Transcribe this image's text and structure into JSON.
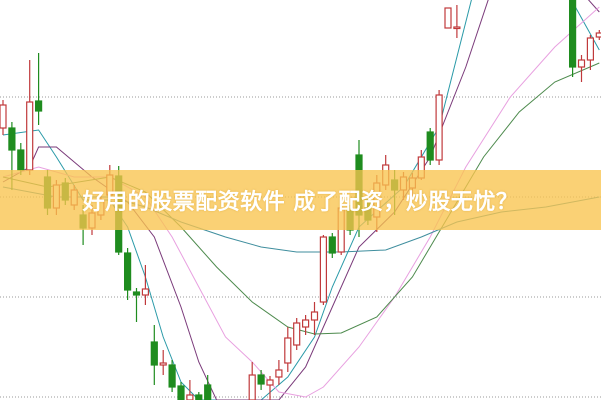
{
  "banner": {
    "text": "好用的股票配资软件 成了配资，炒股无忧？"
  },
  "chart_data": {
    "type": "candlestick",
    "title": "",
    "xlabel": "",
    "ylabel": "",
    "ylim": [
      0,
      3.97
    ],
    "xlim": [
      0,
      67
    ],
    "grid": {
      "horizontal": true,
      "style": "dotted",
      "values": [
        1,
        2,
        3,
        0
      ]
    },
    "colors": {
      "up": "#c0393b",
      "down": "#1f8c1f",
      "grid": "#999999",
      "banner": "#f9c44e"
    },
    "candles": [
      {
        "i": 0,
        "o": 2.69,
        "h": 2.97,
        "l": 2.62,
        "c": 2.92
      },
      {
        "i": 1,
        "o": 2.69,
        "h": 2.75,
        "l": 2.07,
        "c": 2.47
      },
      {
        "i": 2,
        "o": 2.47,
        "h": 2.54,
        "l": 2.22,
        "c": 2.27
      },
      {
        "i": 3,
        "o": 2.27,
        "h": 3.37,
        "l": 2.22,
        "c": 2.95
      },
      {
        "i": 4,
        "o": 2.96,
        "h": 3.44,
        "l": 2.72,
        "c": 2.86
      },
      {
        "i": 5,
        "o": 2.2,
        "h": 2.27,
        "l": 1.82,
        "c": 1.89
      },
      {
        "i": 6,
        "o": 1.89,
        "h": 2.17,
        "l": 1.82,
        "c": 2.12
      },
      {
        "i": 7,
        "o": 2.14,
        "h": 2.19,
        "l": 1.92,
        "c": 1.97
      },
      {
        "i": 8,
        "o": 1.92,
        "h": 2.12,
        "l": 1.87,
        "c": 2.07
      },
      {
        "i": 9,
        "o": 1.82,
        "h": 1.92,
        "l": 1.52,
        "c": 1.69
      },
      {
        "i": 10,
        "o": 1.69,
        "h": 1.92,
        "l": 1.62,
        "c": 1.84
      },
      {
        "i": 11,
        "o": 1.82,
        "h": 2.02,
        "l": 1.77,
        "c": 1.97
      },
      {
        "i": 12,
        "o": 2.02,
        "h": 2.32,
        "l": 1.97,
        "c": 2.22
      },
      {
        "i": 13,
        "o": 2.21,
        "h": 2.31,
        "l": 1.42,
        "c": 1.45
      },
      {
        "i": 14,
        "o": 1.44,
        "h": 1.49,
        "l": 0.97,
        "c": 1.07
      },
      {
        "i": 15,
        "o": 1.05,
        "h": 1.09,
        "l": 0.75,
        "c": 1.02
      },
      {
        "i": 16,
        "o": 1.02,
        "h": 1.32,
        "l": 0.92,
        "c": 1.08
      },
      {
        "i": 17,
        "o": 0.55,
        "h": 0.72,
        "l": 0.12,
        "c": 0.32
      },
      {
        "i": 18,
        "o": 0.32,
        "h": 0.47,
        "l": 0.22,
        "c": 0.34
      },
      {
        "i": 19,
        "o": 0.32,
        "h": 0.37,
        "l": 0.05,
        "c": 0.1
      },
      {
        "i": 20,
        "o": 0.11,
        "h": 0.15,
        "l": -0.03,
        "c": -0.03
      },
      {
        "i": 21,
        "o": -0.03,
        "h": 0.17,
        "l": -0.03,
        "c": 0.02
      },
      {
        "i": 22,
        "o": 0.02,
        "h": 0.05,
        "l": -0.03,
        "c": -0.03
      },
      {
        "i": 23,
        "o": 0.12,
        "h": 0.22,
        "l": -0.03,
        "c": -0.03
      },
      {
        "i": 28,
        "o": -0.03,
        "h": 0.35,
        "l": -0.03,
        "c": 0.22
      },
      {
        "i": 29,
        "o": 0.22,
        "h": 0.27,
        "l": 0.07,
        "c": 0.13
      },
      {
        "i": 30,
        "o": 0.12,
        "h": 0.21,
        "l": -0.03,
        "c": 0.17
      },
      {
        "i": 31,
        "o": 0.2,
        "h": 0.37,
        "l": 0.12,
        "c": 0.27
      },
      {
        "i": 32,
        "o": 0.34,
        "h": 0.7,
        "l": 0.25,
        "c": 0.59
      },
      {
        "i": 33,
        "o": 0.52,
        "h": 0.79,
        "l": 0.47,
        "c": 0.74
      },
      {
        "i": 34,
        "o": 0.7,
        "h": 0.82,
        "l": 0.62,
        "c": 0.77
      },
      {
        "i": 35,
        "o": 0.77,
        "h": 0.95,
        "l": 0.62,
        "c": 0.85
      },
      {
        "i": 36,
        "o": 0.95,
        "h": 1.62,
        "l": 0.92,
        "c": 1.6
      },
      {
        "i": 37,
        "o": 1.6,
        "h": 1.64,
        "l": 1.39,
        "c": 1.44
      },
      {
        "i": 38,
        "o": 1.45,
        "h": 1.97,
        "l": 1.42,
        "c": 1.89
      },
      {
        "i": 39,
        "o": 1.87,
        "h": 1.92,
        "l": 1.62,
        "c": 1.67
      },
      {
        "i": 40,
        "o": 2.42,
        "h": 2.57,
        "l": 1.6,
        "c": 1.82
      },
      {
        "i": 41,
        "o": 1.97,
        "h": 2.02,
        "l": 1.72,
        "c": 1.77
      },
      {
        "i": 42,
        "o": 1.8,
        "h": 2.22,
        "l": 1.65,
        "c": 2.14
      },
      {
        "i": 43,
        "o": 2.12,
        "h": 2.42,
        "l": 2.07,
        "c": 2.32
      },
      {
        "i": 44,
        "o": 2.17,
        "h": 2.27,
        "l": 1.82,
        "c": 2.07
      },
      {
        "i": 45,
        "o": 2.07,
        "h": 2.25,
        "l": 1.97,
        "c": 2.2
      },
      {
        "i": 46,
        "o": 2.09,
        "h": 2.24,
        "l": 2.0,
        "c": 2.19
      },
      {
        "i": 47,
        "o": 2.19,
        "h": 2.47,
        "l": 2.17,
        "c": 2.4
      },
      {
        "i": 48,
        "o": 2.65,
        "h": 2.69,
        "l": 2.32,
        "c": 2.37
      },
      {
        "i": 49,
        "o": 2.37,
        "h": 3.07,
        "l": 2.32,
        "c": 3.02
      },
      {
        "i": 50,
        "o": 3.69,
        "h": 3.89,
        "l": 3.69,
        "c": 3.89
      },
      {
        "i": 51,
        "o": 3.69,
        "h": 3.92,
        "l": 3.59,
        "c": 3.7
      },
      {
        "i": 64,
        "o": 3.97,
        "h": 3.97,
        "l": 3.2,
        "c": 3.3
      },
      {
        "i": 65,
        "o": 3.3,
        "h": 3.42,
        "l": 3.15,
        "c": 3.37
      },
      {
        "i": 66,
        "o": 3.37,
        "h": 3.62,
        "l": 3.27,
        "c": 3.59
      },
      {
        "i": 67,
        "o": 3.6,
        "h": 3.67,
        "l": 3.57,
        "c": 3.64
      }
    ],
    "moving_averages": [
      {
        "color": "#2a9aa8",
        "points": [
          [
            0,
            2.62
          ],
          [
            4,
            2.67
          ],
          [
            6,
            2.4
          ],
          [
            9,
            1.97
          ],
          [
            12,
            1.97
          ],
          [
            14,
            1.7
          ],
          [
            16,
            1.2
          ],
          [
            18,
            0.6
          ],
          [
            20,
            0.15
          ],
          [
            22,
            -0.03
          ],
          [
            29,
            -0.03
          ],
          [
            32,
            0.2
          ],
          [
            35,
            0.6
          ],
          [
            37,
            1.1
          ],
          [
            40,
            1.7
          ],
          [
            45,
            2.1
          ],
          [
            49,
            2.7
          ],
          [
            53,
            4.1
          ]
        ]
      },
      {
        "color": "#2a9aa8",
        "points": [
          [
            63,
            4.1
          ],
          [
            64,
            3.95
          ],
          [
            67,
            3.47
          ]
        ]
      },
      {
        "color": "#7a3a7a",
        "points": [
          [
            0,
            2.15
          ],
          [
            3,
            2.3
          ],
          [
            4,
            2.5
          ],
          [
            6,
            2.5
          ],
          [
            10,
            2.2
          ],
          [
            14,
            1.95
          ],
          [
            17,
            1.6
          ],
          [
            20,
            0.9
          ],
          [
            22,
            0.35
          ],
          [
            24,
            -0.03
          ],
          [
            31,
            -0.03
          ],
          [
            34,
            0.3
          ],
          [
            37,
            0.9
          ],
          [
            40,
            1.5
          ],
          [
            44,
            1.85
          ],
          [
            48,
            2.4
          ],
          [
            52,
            3.3
          ],
          [
            55,
            4.1
          ]
        ]
      },
      {
        "color": "#7a3a7a",
        "points": [
          [
            65,
            4.05
          ],
          [
            67,
            3.85
          ]
        ]
      },
      {
        "color": "#e8a0e0",
        "points": [
          [
            0,
            2.2
          ],
          [
            4,
            2.3
          ],
          [
            8,
            2.2
          ],
          [
            12,
            2.2
          ],
          [
            16,
            2.0
          ],
          [
            19,
            1.6
          ],
          [
            22,
            1.1
          ],
          [
            25,
            0.6
          ],
          [
            28,
            0.35
          ],
          [
            31,
            0.05
          ],
          [
            34,
            0.0
          ],
          [
            36,
            0.1
          ],
          [
            40,
            0.5
          ],
          [
            44,
            1.0
          ],
          [
            48,
            1.6
          ],
          [
            52,
            2.3
          ],
          [
            57,
            3.0
          ],
          [
            62,
            3.5
          ],
          [
            67,
            3.9
          ]
        ]
      },
      {
        "color": "#4d8a4d",
        "points": [
          [
            0,
            2.2
          ],
          [
            5,
            2.1
          ],
          [
            12,
            2.2
          ],
          [
            16,
            2.05
          ],
          [
            20,
            1.7
          ],
          [
            24,
            1.3
          ],
          [
            28,
            0.95
          ],
          [
            32,
            0.7
          ],
          [
            35,
            0.63
          ],
          [
            38,
            0.64
          ],
          [
            42,
            0.8
          ],
          [
            46,
            1.2
          ],
          [
            50,
            1.8
          ],
          [
            54,
            2.4
          ],
          [
            58,
            2.85
          ],
          [
            62,
            3.15
          ],
          [
            67,
            3.34
          ]
        ]
      },
      {
        "color": "#3f8e9e",
        "points": [
          [
            0,
            2.1
          ],
          [
            6,
            2.0
          ],
          [
            12,
            2.0
          ],
          [
            16,
            1.9
          ],
          [
            20,
            1.75
          ],
          [
            25,
            1.6
          ],
          [
            29,
            1.5
          ],
          [
            33,
            1.45
          ],
          [
            38,
            1.45
          ],
          [
            43,
            1.47
          ],
          [
            47,
            1.6
          ],
          [
            51,
            1.75
          ],
          [
            56,
            1.85
          ],
          [
            61,
            1.9
          ],
          [
            67,
            2.0
          ]
        ]
      }
    ]
  }
}
